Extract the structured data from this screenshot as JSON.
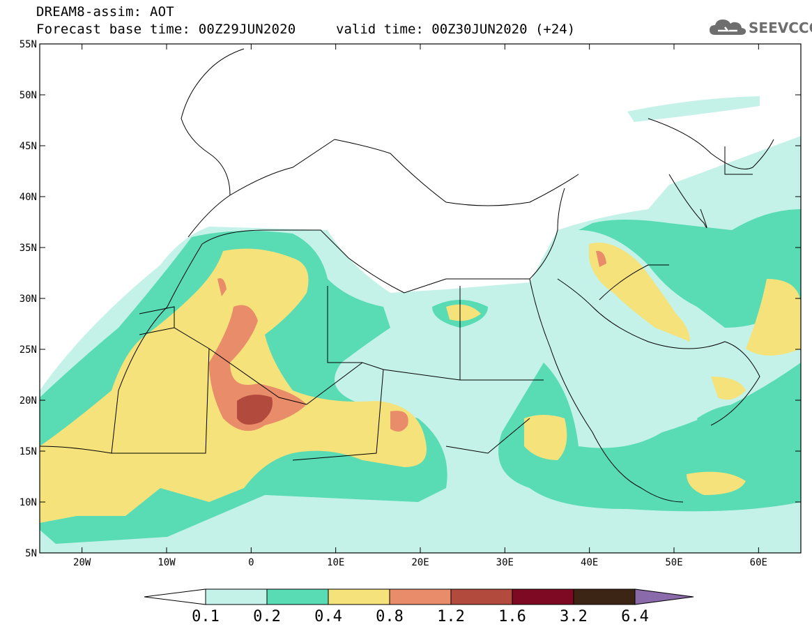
{
  "header": {
    "line1": "DREAM8-assim: AOT",
    "line2": "Forecast base time: 00Z29JUN2020",
    "valid": "valid time: 00Z30JUN2020 (+24)"
  },
  "logo": {
    "text": "SEEVCCC",
    "icon": "cloud-icon"
  },
  "map": {
    "projection": "lat-lon",
    "lon_range": [
      -25,
      65
    ],
    "lat_range": [
      5,
      55
    ],
    "lon_ticks": [
      {
        "lon": -20,
        "label": "20W"
      },
      {
        "lon": -10,
        "label": "10W"
      },
      {
        "lon": 0,
        "label": "0"
      },
      {
        "lon": 10,
        "label": "10E"
      },
      {
        "lon": 20,
        "label": "20E"
      },
      {
        "lon": 30,
        "label": "30E"
      },
      {
        "lon": 40,
        "label": "40E"
      },
      {
        "lon": 50,
        "label": "50E"
      },
      {
        "lon": 60,
        "label": "60E"
      }
    ],
    "lat_ticks": [
      {
        "lat": 55,
        "label": "55N"
      },
      {
        "lat": 50,
        "label": "50N"
      },
      {
        "lat": 45,
        "label": "45N"
      },
      {
        "lat": 40,
        "label": "40N"
      },
      {
        "lat": 35,
        "label": "35N"
      },
      {
        "lat": 30,
        "label": "30N"
      },
      {
        "lat": 25,
        "label": "25N"
      },
      {
        "lat": 20,
        "label": "20N"
      },
      {
        "lat": 15,
        "label": "15N"
      },
      {
        "lat": 10,
        "label": "10N"
      },
      {
        "lat": 5,
        "label": "5N"
      }
    ]
  },
  "colorbar": {
    "labels": [
      "0.1",
      "0.2",
      "0.4",
      "0.8",
      "1.2",
      "1.6",
      "3.2",
      "6.4"
    ],
    "colors": [
      "#ffffff",
      "#c4f2e8",
      "#59dcb4",
      "#f5e27a",
      "#e98c6a",
      "#b24a3d",
      "#7d0a22",
      "#3c2515",
      "#8a6aaa"
    ]
  }
}
